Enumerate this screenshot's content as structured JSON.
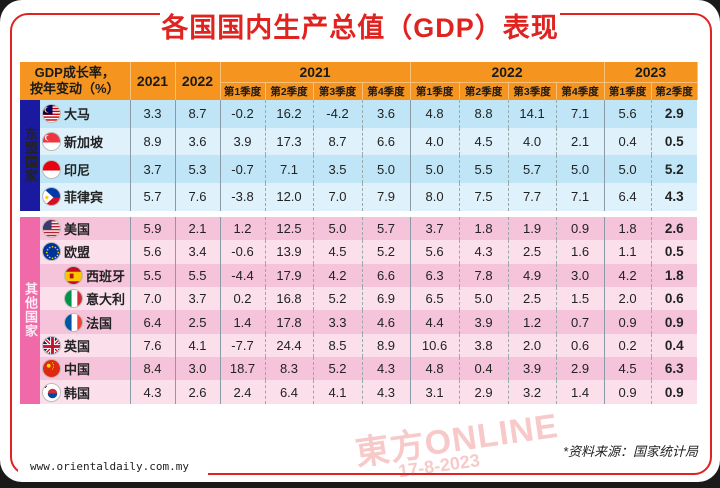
{
  "title": "各国国内生产总值（GDP）表现",
  "table": {
    "corner_label_line1": "GDP成长率，",
    "corner_label_line2": "按年变动（%）",
    "annual_headers": [
      "2021",
      "2022"
    ],
    "quarter_groups": [
      {
        "year": "2021",
        "quarters": [
          "第1季度",
          "第2季度",
          "第3季度",
          "第4季度"
        ]
      },
      {
        "year": "2022",
        "quarters": [
          "第1季度",
          "第2季度",
          "第3季度",
          "第4季度"
        ]
      },
      {
        "year": "2023",
        "quarters": [
          "第1季度",
          "第2季度"
        ]
      }
    ],
    "groups": [
      {
        "label": "东盟国家",
        "color": "#1a1aa0",
        "rows": [
          {
            "name": "大马",
            "flag": "malaysia-flag-icon",
            "values": [
              "3.3",
              "8.7",
              "-0.2",
              "16.2",
              "-4.2",
              "3.6",
              "4.8",
              "8.8",
              "14.1",
              "7.1",
              "5.6",
              "2.9"
            ]
          },
          {
            "name": "新加坡",
            "flag": "singapore-flag-icon",
            "values": [
              "8.9",
              "3.6",
              "3.9",
              "17.3",
              "8.7",
              "6.6",
              "4.0",
              "4.5",
              "4.0",
              "2.1",
              "0.4",
              "0.5"
            ]
          },
          {
            "name": "印尼",
            "flag": "indonesia-flag-icon",
            "values": [
              "3.7",
              "5.3",
              "-0.7",
              "7.1",
              "3.5",
              "5.0",
              "5.0",
              "5.5",
              "5.7",
              "5.0",
              "5.0",
              "5.2"
            ]
          },
          {
            "name": "菲律宾",
            "flag": "philippines-flag-icon",
            "values": [
              "5.7",
              "7.6",
              "-3.8",
              "12.0",
              "7.0",
              "7.9",
              "8.0",
              "7.5",
              "7.7",
              "7.1",
              "6.4",
              "4.3"
            ]
          }
        ]
      },
      {
        "label": "其他国家",
        "color": "#f06aaa",
        "rows": [
          {
            "name": "美国",
            "flag": "usa-flag-icon",
            "values": [
              "5.9",
              "2.1",
              "1.2",
              "12.5",
              "5.0",
              "5.7",
              "3.7",
              "1.8",
              "1.9",
              "0.9",
              "1.8",
              "2.6"
            ]
          },
          {
            "name": "欧盟",
            "flag": "eu-flag-icon",
            "values": [
              "5.6",
              "3.4",
              "-0.6",
              "13.9",
              "4.5",
              "5.2",
              "5.6",
              "4.3",
              "2.5",
              "1.6",
              "1.1",
              "0.5"
            ]
          },
          {
            "name": "西班牙",
            "flag": "spain-flag-icon",
            "sub": true,
            "values": [
              "5.5",
              "5.5",
              "-4.4",
              "17.9",
              "4.2",
              "6.6",
              "6.3",
              "7.8",
              "4.9",
              "3.0",
              "4.2",
              "1.8"
            ]
          },
          {
            "name": "意大利",
            "flag": "italy-flag-icon",
            "sub": true,
            "values": [
              "7.0",
              "3.7",
              "0.2",
              "16.8",
              "5.2",
              "6.9",
              "6.5",
              "5.0",
              "2.5",
              "1.5",
              "2.0",
              "0.6"
            ]
          },
          {
            "name": "法国",
            "flag": "france-flag-icon",
            "sub": true,
            "values": [
              "6.4",
              "2.5",
              "1.4",
              "17.8",
              "3.3",
              "4.6",
              "4.4",
              "3.9",
              "1.2",
              "0.7",
              "0.9",
              "0.9"
            ]
          },
          {
            "name": "英国",
            "flag": "uk-flag-icon",
            "values": [
              "7.6",
              "4.1",
              "-7.7",
              "24.4",
              "8.5",
              "8.9",
              "10.6",
              "3.8",
              "2.0",
              "0.6",
              "0.2",
              "0.4"
            ]
          },
          {
            "name": "中国",
            "flag": "china-flag-icon",
            "values": [
              "8.4",
              "3.0",
              "18.7",
              "8.3",
              "5.2",
              "4.3",
              "4.8",
              "0.4",
              "3.9",
              "2.9",
              "4.5",
              "6.3"
            ]
          },
          {
            "name": "韩国",
            "flag": "korea-flag-icon",
            "values": [
              "4.3",
              "2.6",
              "2.4",
              "6.4",
              "4.1",
              "4.3",
              "3.1",
              "2.9",
              "3.2",
              "1.4",
              "0.9",
              "0.9"
            ]
          }
        ]
      }
    ]
  },
  "source": "*资料来源：国家统计局",
  "url": "www.orientaldaily.com.my",
  "watermark": {
    "brand": "東方ONLINE",
    "date": "17-8-2023"
  },
  "colors": {
    "title": "#e0231f",
    "header": "#f5951f",
    "asean": "#1a1aa0",
    "other": "#f06aaa"
  }
}
